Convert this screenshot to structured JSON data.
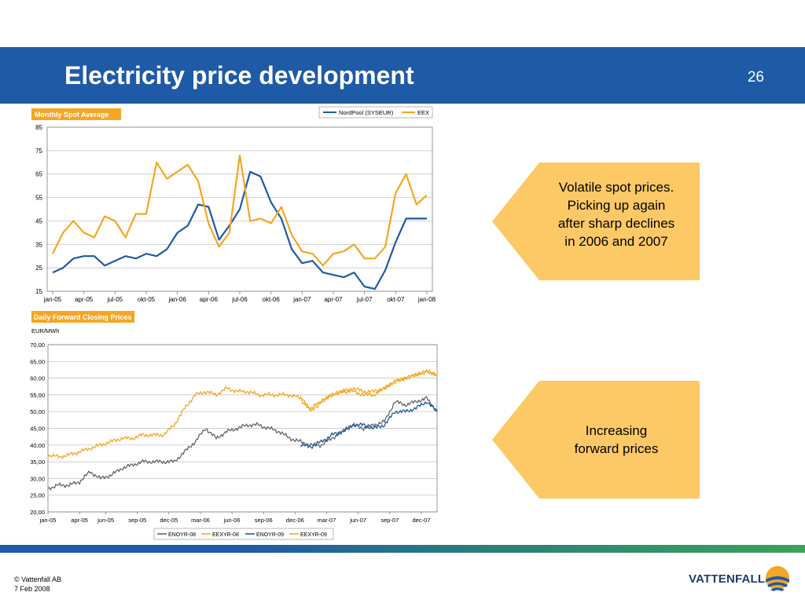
{
  "slide": {
    "title": "Electricity price development",
    "page_number": "26"
  },
  "callouts": [
    {
      "lines": [
        "Volatile spot prices.",
        "Picking up again",
        "after sharp declines",
        "in 2006 and 2007"
      ]
    },
    {
      "lines": [
        "Increasing",
        "forward prices"
      ]
    }
  ],
  "footer": {
    "copyright": "© Vattenfall AB",
    "date": "7 Feb 2008"
  },
  "logo": {
    "text": "VATTENFALL"
  },
  "colors": {
    "header": "#1f5aa6",
    "blue_series": "#1f5aa6",
    "orange_series": "#f5a623",
    "grey_series": "#666666",
    "callout": "#fcc966"
  },
  "chart_data": [
    {
      "type": "line",
      "title": "Monthly Spot Average",
      "ylabel": "",
      "xlabel": "",
      "ylim": [
        15,
        85
      ],
      "yticks": [
        15,
        25,
        35,
        45,
        55,
        65,
        75,
        85
      ],
      "x_tick_labels": [
        "jan-05",
        "apr-05",
        "jul-05",
        "okt-05",
        "jan-06",
        "apr-06",
        "jul-06",
        "okt-06",
        "jan-07",
        "apr-07",
        "jul-07",
        "okt-07",
        "jan-08"
      ],
      "x_tick_indices": [
        0,
        3,
        6,
        9,
        12,
        15,
        18,
        21,
        24,
        27,
        30,
        33,
        36
      ],
      "legend_position": "top-right",
      "grid": true,
      "series": [
        {
          "name": "NordPool (SYSEUR)",
          "color": "#1f5aa6",
          "values": [
            23,
            25,
            29,
            30,
            30,
            26,
            28,
            30,
            29,
            31,
            30,
            33,
            40,
            43,
            52,
            51,
            37,
            43,
            50,
            66,
            64,
            53,
            46,
            33,
            27,
            28,
            23,
            22,
            21,
            23,
            17,
            16,
            24,
            36,
            46,
            46,
            46
          ]
        },
        {
          "name": "EEX",
          "color": "#f5a623",
          "values": [
            31,
            40,
            45,
            40,
            38,
            47,
            45,
            38,
            48,
            48,
            70,
            63,
            66,
            69,
            62,
            44,
            34,
            40,
            73,
            45,
            46,
            44,
            51,
            39,
            32,
            31,
            26,
            31,
            32,
            35,
            29,
            29,
            34,
            57,
            65,
            52,
            56
          ]
        }
      ]
    },
    {
      "type": "line",
      "title": "Daily Forward Closing Prices",
      "ylabel": "EUR/MWh",
      "xlabel": "",
      "ylim": [
        20,
        70
      ],
      "yticks": [
        "20,00",
        "25,00",
        "30,00",
        "35,00",
        "40,00",
        "45,00",
        "50,00",
        "55,00",
        "60,00",
        "65,00",
        "70,00"
      ],
      "x_tick_labels": [
        "jan-05",
        "apr-05",
        "jun-05",
        "sep-05",
        "dec-05",
        "mar-06",
        "jun-06",
        "sep-06",
        "dec-06",
        "mar-07",
        "jun-07",
        "sep-07",
        "dec-07"
      ],
      "x_tick_positions": [
        0,
        3,
        5.5,
        8.5,
        11.5,
        14.5,
        17.5,
        20.5,
        23.5,
        26.5,
        29.5,
        32.5,
        35.5
      ],
      "x_range": [
        0,
        37
      ],
      "legend_position": "bottom",
      "grid": true,
      "series": [
        {
          "name": "ENOYR-08",
          "color": "#666666",
          "x": [
            0,
            1,
            2,
            3,
            4,
            5,
            6,
            7,
            8,
            9,
            10,
            11,
            12,
            13,
            14,
            15,
            16,
            17,
            18,
            19,
            20,
            21,
            22,
            23,
            24,
            25,
            26,
            27,
            28,
            29,
            30,
            31,
            32,
            33,
            34,
            35,
            36,
            37
          ],
          "values": [
            27,
            28,
            28,
            29,
            32,
            30,
            31,
            33,
            34,
            35,
            35,
            35,
            35,
            38,
            41,
            45,
            42,
            44,
            45,
            46,
            46,
            45,
            44,
            42,
            41,
            40,
            40,
            42,
            44,
            46,
            45,
            46,
            47,
            53,
            52,
            53,
            54,
            50
          ]
        },
        {
          "name": "EEXYR-08",
          "color": "#f5a623",
          "x": [
            0,
            1,
            2,
            3,
            4,
            5,
            6,
            7,
            8,
            9,
            10,
            11,
            12,
            13,
            14,
            15,
            16,
            17,
            18,
            19,
            20,
            21,
            22,
            23,
            24,
            25,
            26,
            27,
            28,
            29,
            30,
            31,
            32,
            33,
            34,
            35,
            36,
            37
          ],
          "values": [
            37,
            36.5,
            37,
            38,
            39,
            40,
            41,
            42,
            42,
            43,
            43,
            43,
            46,
            51,
            55,
            56,
            55,
            57,
            56,
            56,
            55,
            55,
            55,
            55,
            54,
            50,
            53,
            55,
            56,
            56,
            55,
            55,
            57,
            59,
            60,
            61,
            62,
            61
          ]
        },
        {
          "name": "ENOYR-09",
          "color": "#1f5aa6",
          "x": [
            24,
            25,
            26,
            27,
            28,
            29,
            30,
            31,
            32,
            33,
            34,
            35,
            36,
            37
          ],
          "values": [
            40,
            39.5,
            41,
            43,
            44,
            46,
            46,
            45,
            46,
            50,
            50,
            51,
            53,
            50
          ]
        },
        {
          "name": "EEXYR-09",
          "color": "#f5a623",
          "x": [
            24,
            25,
            26,
            27,
            28,
            29,
            30,
            31,
            32,
            33,
            34,
            35,
            36,
            37
          ],
          "values": [
            54,
            51,
            53,
            55,
            56,
            57,
            56,
            56,
            57,
            59,
            60,
            61,
            62,
            61
          ]
        }
      ]
    }
  ]
}
